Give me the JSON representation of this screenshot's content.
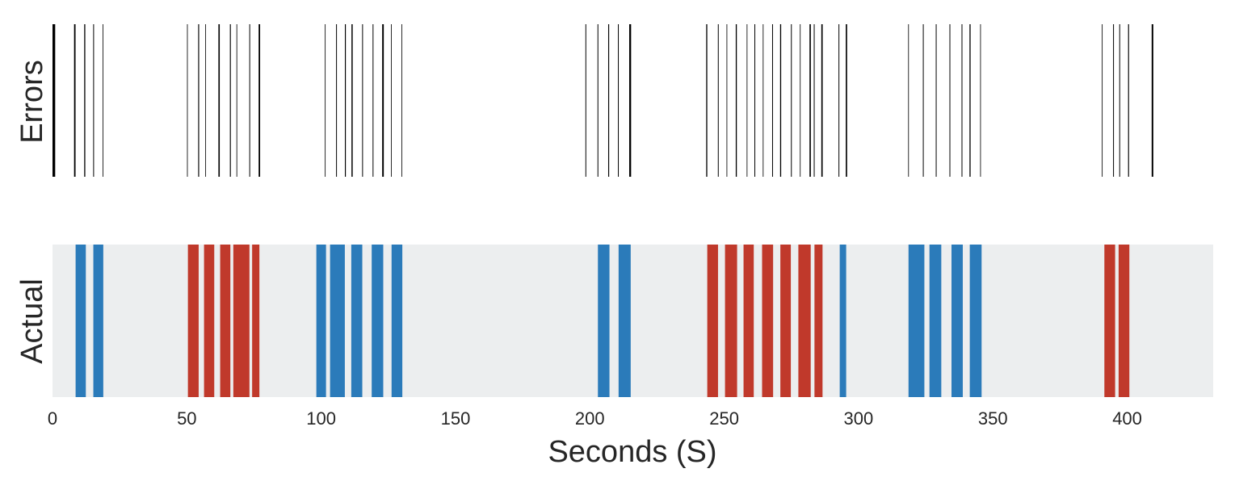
{
  "chart_data": {
    "type": "event-strip",
    "xlabel": "Seconds (S)",
    "xlim": [
      0,
      432
    ],
    "xticks": [
      0,
      50,
      100,
      150,
      200,
      250,
      300,
      350,
      400
    ],
    "grid": false,
    "panels": {
      "errors": {
        "ylabel": "Errors",
        "line_color": "#000000",
        "events": [
          {
            "x": 0.5,
            "w": 1.0
          },
          {
            "x": 8.3,
            "w": 0.55
          },
          {
            "x": 12.0,
            "w": 0.4
          },
          {
            "x": 15.3,
            "w": 0.3
          },
          {
            "x": 18.8,
            "w": 0.25
          },
          {
            "x": 50.2,
            "w": 0.25
          },
          {
            "x": 54.4,
            "w": 0.35
          },
          {
            "x": 57.0,
            "w": 0.25
          },
          {
            "x": 62.0,
            "w": 0.5
          },
          {
            "x": 66.2,
            "w": 0.35
          },
          {
            "x": 68.6,
            "w": 0.25
          },
          {
            "x": 73.4,
            "w": 0.3
          },
          {
            "x": 77.0,
            "w": 0.55
          },
          {
            "x": 101.5,
            "w": 0.25
          },
          {
            "x": 105.7,
            "w": 0.3
          },
          {
            "x": 109.0,
            "w": 0.35
          },
          {
            "x": 111.5,
            "w": 0.45
          },
          {
            "x": 115.4,
            "w": 0.3
          },
          {
            "x": 119.3,
            "w": 0.3
          },
          {
            "x": 123.0,
            "w": 0.6
          },
          {
            "x": 126.1,
            "w": 0.25
          },
          {
            "x": 130.0,
            "w": 0.25
          },
          {
            "x": 198.5,
            "w": 0.3
          },
          {
            "x": 203.0,
            "w": 0.3
          },
          {
            "x": 207.0,
            "w": 0.35
          },
          {
            "x": 210.6,
            "w": 0.3
          },
          {
            "x": 215.0,
            "w": 0.7
          },
          {
            "x": 243.5,
            "w": 0.4
          },
          {
            "x": 247.8,
            "w": 0.3
          },
          {
            "x": 251.0,
            "w": 0.25
          },
          {
            "x": 254.5,
            "w": 0.4
          },
          {
            "x": 258.5,
            "w": 0.25
          },
          {
            "x": 261.4,
            "w": 0.3
          },
          {
            "x": 264.5,
            "w": 0.25
          },
          {
            "x": 268.0,
            "w": 0.3
          },
          {
            "x": 271.0,
            "w": 0.4
          },
          {
            "x": 275.0,
            "w": 0.3
          },
          {
            "x": 278.3,
            "w": 0.25
          },
          {
            "x": 282.0,
            "w": 0.5
          },
          {
            "x": 283.5,
            "w": 0.3
          },
          {
            "x": 286.4,
            "w": 0.5
          },
          {
            "x": 292.7,
            "w": 0.3
          },
          {
            "x": 295.5,
            "w": 0.5
          },
          {
            "x": 318.6,
            "w": 0.25
          },
          {
            "x": 324.1,
            "w": 0.3
          },
          {
            "x": 328.9,
            "w": 0.3
          },
          {
            "x": 334.0,
            "w": 0.3
          },
          {
            "x": 338.5,
            "w": 0.3
          },
          {
            "x": 341.5,
            "w": 0.4
          },
          {
            "x": 345.4,
            "w": 0.25
          },
          {
            "x": 390.7,
            "w": 0.25
          },
          {
            "x": 394.9,
            "w": 0.3
          },
          {
            "x": 397.2,
            "w": 0.3
          },
          {
            "x": 400.5,
            "w": 0.35
          },
          {
            "x": 409.4,
            "w": 0.6
          }
        ]
      },
      "actual": {
        "ylabel": "Actual",
        "background_color": "#eceeef",
        "events": [
          {
            "start": 8.6,
            "end": 12.4,
            "label": "blue"
          },
          {
            "start": 15.2,
            "end": 18.9,
            "label": "blue"
          },
          {
            "start": 50.4,
            "end": 54.4,
            "label": "red"
          },
          {
            "start": 56.4,
            "end": 60.2,
            "label": "red"
          },
          {
            "start": 62.4,
            "end": 66.2,
            "label": "red"
          },
          {
            "start": 67.3,
            "end": 73.3,
            "label": "red"
          },
          {
            "start": 74.3,
            "end": 77.0,
            "label": "red"
          },
          {
            "start": 98.2,
            "end": 101.8,
            "label": "blue"
          },
          {
            "start": 103.3,
            "end": 108.8,
            "label": "blue"
          },
          {
            "start": 111.2,
            "end": 115.3,
            "label": "blue"
          },
          {
            "start": 118.8,
            "end": 123.1,
            "label": "blue"
          },
          {
            "start": 126.2,
            "end": 130.2,
            "label": "blue"
          },
          {
            "start": 203.0,
            "end": 207.3,
            "label": "blue"
          },
          {
            "start": 210.7,
            "end": 215.2,
            "label": "blue"
          },
          {
            "start": 243.7,
            "end": 247.7,
            "label": "red"
          },
          {
            "start": 250.3,
            "end": 254.8,
            "label": "red"
          },
          {
            "start": 257.2,
            "end": 261.0,
            "label": "red"
          },
          {
            "start": 264.1,
            "end": 268.2,
            "label": "red"
          },
          {
            "start": 270.9,
            "end": 274.8,
            "label": "red"
          },
          {
            "start": 277.6,
            "end": 282.2,
            "label": "red"
          },
          {
            "start": 283.6,
            "end": 286.6,
            "label": "red"
          },
          {
            "start": 293.0,
            "end": 295.4,
            "label": "blue"
          },
          {
            "start": 318.6,
            "end": 324.5,
            "label": "blue"
          },
          {
            "start": 326.4,
            "end": 330.8,
            "label": "blue"
          },
          {
            "start": 334.6,
            "end": 338.8,
            "label": "blue"
          },
          {
            "start": 341.4,
            "end": 345.8,
            "label": "blue"
          },
          {
            "start": 391.5,
            "end": 395.5,
            "label": "red"
          },
          {
            "start": 396.8,
            "end": 400.8,
            "label": "red"
          }
        ]
      }
    },
    "colors": {
      "blue": "#2b7bba",
      "red": "#c0392b"
    }
  }
}
